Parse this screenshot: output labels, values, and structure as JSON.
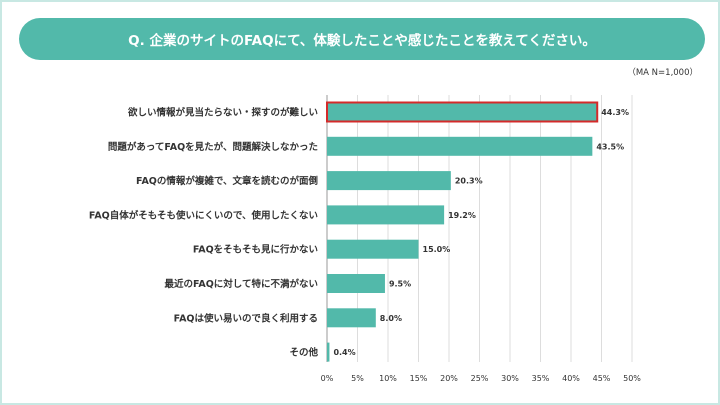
{
  "title": "Q. 企業のサイトのFAQにて、体験したことや感じたことを教えてください。",
  "sample_note": "（MA N=1,000）",
  "colors": {
    "bar": "#52b9aa",
    "highlight_border": "#d42a2a",
    "grid": "#dddddd",
    "banner": "#52b9aa"
  },
  "chart_data": {
    "type": "bar",
    "orientation": "horizontal",
    "title": "Q. 企業のサイトのFAQにて、体験したことや感じたことを教えてください。",
    "categories": [
      "欲しい情報が見当たらない・探すのが難しい",
      "問題があってFAQを見たが、問題解決しなかった",
      "FAQの情報が複雑で、文章を読むのが面倒",
      "FAQ自体がそもそも使いにくいので、使用したくない",
      "FAQをそもそも見に行かない",
      "最近のFAQに対して特に不満がない",
      "FAQは使い易いので良く利用する",
      "その他"
    ],
    "values": [
      44.3,
      43.5,
      20.3,
      19.2,
      15.0,
      9.5,
      8.0,
      0.4
    ],
    "value_labels": [
      "44.3%",
      "43.5%",
      "20.3%",
      "19.2%",
      "15.0%",
      "9.5%",
      "8.0%",
      "0.4%"
    ],
    "xlim": [
      0,
      50
    ],
    "xticks": [
      "0%",
      "5%",
      "10%",
      "15%",
      "20%",
      "25%",
      "30%",
      "35%",
      "40%",
      "45%",
      "50%"
    ],
    "highlighted_index": 0,
    "grid": true
  }
}
